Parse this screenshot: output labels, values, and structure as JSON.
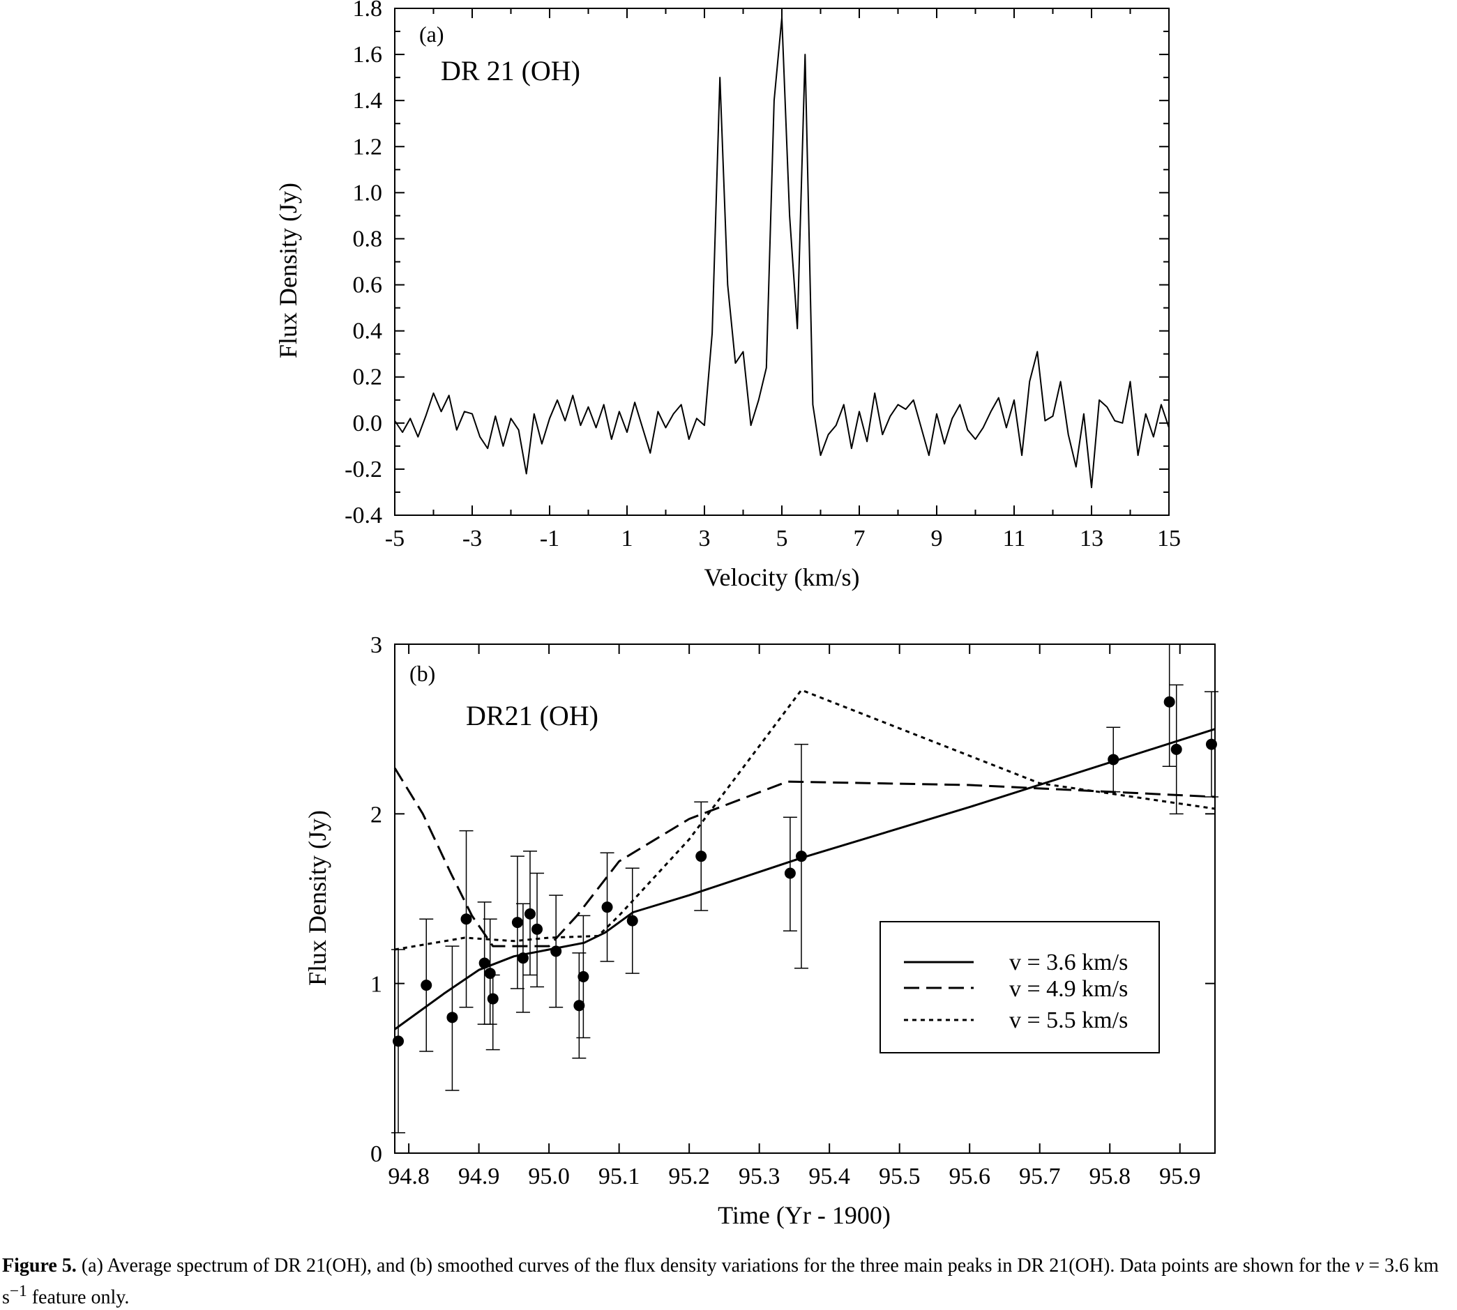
{
  "chart_data": [
    {
      "type": "line",
      "panel_label": "(a)",
      "annotation": "DR 21 (OH)",
      "xlabel": "Velocity (km/s)",
      "ylabel": "Flux Density (Jy)",
      "xlim": [
        -5,
        15
      ],
      "ylim": [
        -0.4,
        1.8
      ],
      "xticks": [
        "-5",
        "-3",
        "-1",
        "1",
        "3",
        "5",
        "7",
        "9",
        "11",
        "13",
        "15"
      ],
      "yticks": [
        "1.8",
        "1.6",
        "1.4",
        "1.2",
        "1.0",
        "0.8",
        "0.6",
        "0.4",
        "0.2",
        "0.0",
        "-0.2",
        "-0.4"
      ],
      "x": [
        -5.0,
        -4.8,
        -4.6,
        -4.4,
        -4.2,
        -4.0,
        -3.8,
        -3.6,
        -3.4,
        -3.2,
        -3.0,
        -2.8,
        -2.6,
        -2.4,
        -2.2,
        -2.0,
        -1.8,
        -1.6,
        -1.4,
        -1.2,
        -1.0,
        -0.8,
        -0.6,
        -0.4,
        -0.2,
        0.0,
        0.2,
        0.4,
        0.6,
        0.8,
        1.0,
        1.2,
        1.4,
        1.6,
        1.8,
        2.0,
        2.2,
        2.4,
        2.6,
        2.8,
        3.0,
        3.2,
        3.4,
        3.6,
        3.8,
        4.0,
        4.2,
        4.4,
        4.6,
        4.8,
        5.0,
        5.2,
        5.4,
        5.6,
        5.8,
        6.0,
        6.2,
        6.4,
        6.6,
        6.8,
        7.0,
        7.2,
        7.4,
        7.6,
        7.8,
        8.0,
        8.2,
        8.4,
        8.6,
        8.8,
        9.0,
        9.2,
        9.4,
        9.6,
        9.8,
        10.0,
        10.2,
        10.4,
        10.6,
        10.8,
        11.0,
        11.2,
        11.4,
        11.6,
        11.8,
        12.0,
        12.2,
        12.4,
        12.6,
        12.8,
        13.0,
        13.2,
        13.4,
        13.6,
        13.8,
        14.0,
        14.2,
        14.4,
        14.6,
        14.8,
        15.0
      ],
      "y": [
        0.01,
        -0.04,
        0.02,
        -0.06,
        0.03,
        0.13,
        0.05,
        0.12,
        -0.03,
        0.05,
        0.04,
        -0.06,
        -0.11,
        0.03,
        -0.1,
        0.02,
        -0.03,
        -0.22,
        0.04,
        -0.09,
        0.02,
        0.1,
        0.01,
        0.12,
        -0.01,
        0.07,
        -0.02,
        0.08,
        -0.07,
        0.05,
        -0.04,
        0.09,
        -0.02,
        -0.13,
        0.05,
        -0.02,
        0.04,
        0.08,
        -0.07,
        0.02,
        -0.01,
        0.39,
        1.5,
        0.6,
        0.26,
        0.31,
        -0.01,
        0.1,
        0.24,
        1.4,
        1.76,
        0.9,
        0.41,
        1.6,
        0.08,
        -0.14,
        -0.05,
        -0.01,
        0.08,
        -0.11,
        0.05,
        -0.08,
        0.13,
        -0.05,
        0.03,
        0.08,
        0.06,
        0.1,
        -0.02,
        -0.14,
        0.04,
        -0.09,
        0.02,
        0.08,
        -0.03,
        -0.07,
        -0.02,
        0.05,
        0.11,
        -0.02,
        0.1,
        -0.14,
        0.18,
        0.31,
        0.01,
        0.03,
        0.18,
        -0.05,
        -0.19,
        0.04,
        -0.28,
        0.1,
        0.07,
        0.01,
        0.0,
        0.18,
        -0.14,
        0.04,
        -0.06,
        0.08,
        -0.02
      ]
    },
    {
      "type": "line",
      "panel_label": "(b)",
      "annotation": "DR21 (OH)",
      "xlabel": "Time (Yr - 1900)",
      "ylabel": "Flux Density (Jy)",
      "xlim": [
        94.78,
        95.95
      ],
      "ylim": [
        0,
        3
      ],
      "xticks": [
        "94.8",
        "94.9",
        "95.0",
        "95.1",
        "95.2",
        "95.3",
        "95.4",
        "95.5",
        "95.6",
        "95.7",
        "95.8",
        "95.9"
      ],
      "yticks": [
        "3",
        "2",
        "1",
        "0"
      ],
      "legend_position": "center-right",
      "series": [
        {
          "name": "v = 3.6 km/s",
          "style": "solid",
          "x": [
            94.78,
            94.85,
            94.9,
            94.95,
            95.0,
            95.05,
            95.08,
            95.12,
            95.2,
            95.36,
            95.6,
            95.95
          ],
          "y": [
            0.73,
            0.94,
            1.08,
            1.16,
            1.2,
            1.24,
            1.3,
            1.42,
            1.52,
            1.74,
            2.04,
            2.5
          ]
        },
        {
          "name": "v = 4.9 km/s",
          "style": "dashed",
          "x": [
            94.78,
            94.82,
            94.86,
            94.89,
            94.92,
            95.0,
            95.04,
            95.1,
            95.2,
            95.34,
            95.6,
            95.95
          ],
          "y": [
            2.27,
            2.0,
            1.65,
            1.4,
            1.22,
            1.22,
            1.4,
            1.72,
            1.97,
            2.19,
            2.17,
            2.1
          ]
        },
        {
          "name": "v = 5.5 km/s",
          "style": "dotted",
          "x": [
            94.78,
            94.88,
            94.95,
            95.0,
            95.07,
            95.1,
            95.2,
            95.3,
            95.36,
            95.7,
            95.95
          ],
          "y": [
            1.2,
            1.27,
            1.25,
            1.27,
            1.28,
            1.4,
            1.85,
            2.4,
            2.73,
            2.18,
            2.03
          ]
        }
      ],
      "points": {
        "series": "v = 3.6 km/s",
        "x": [
          94.785,
          94.825,
          94.862,
          94.882,
          94.908,
          94.916,
          94.92,
          94.955,
          94.963,
          94.973,
          94.983,
          95.01,
          95.043,
          95.049,
          95.083,
          95.119,
          95.217,
          95.344,
          95.36,
          95.805,
          95.885,
          95.895,
          95.945
        ],
        "y": [
          0.66,
          0.99,
          0.8,
          1.38,
          1.12,
          1.06,
          0.91,
          1.36,
          1.15,
          1.41,
          1.32,
          1.19,
          0.87,
          1.04,
          1.45,
          1.37,
          1.75,
          1.65,
          1.75,
          2.32,
          2.66,
          2.38,
          2.41
        ],
        "y_low": [
          0.12,
          0.6,
          0.37,
          0.86,
          0.76,
          0.76,
          0.61,
          0.97,
          0.83,
          1.05,
          0.98,
          0.86,
          0.56,
          0.68,
          1.13,
          1.06,
          1.43,
          1.31,
          1.09,
          2.13,
          2.28,
          2.0,
          2.1
        ],
        "y_high": [
          1.2,
          1.38,
          1.22,
          1.9,
          1.48,
          1.38,
          1.05,
          1.75,
          1.47,
          1.78,
          1.65,
          1.52,
          1.18,
          1.4,
          1.77,
          1.68,
          2.07,
          1.98,
          2.41,
          2.51,
          3.1,
          2.76,
          2.72
        ]
      }
    }
  ],
  "caption": {
    "fig_num": "Figure 5.",
    "text1": " (a) Average spectrum of DR 21(OH), and (b) smoothed curves of the flux density variations for the three main peaks in DR 21(OH). Data points are shown for the ",
    "v_symbol": "v",
    "eq_text": " = 3.6 km s",
    "exponent": "−1",
    "text2": " feature only."
  }
}
